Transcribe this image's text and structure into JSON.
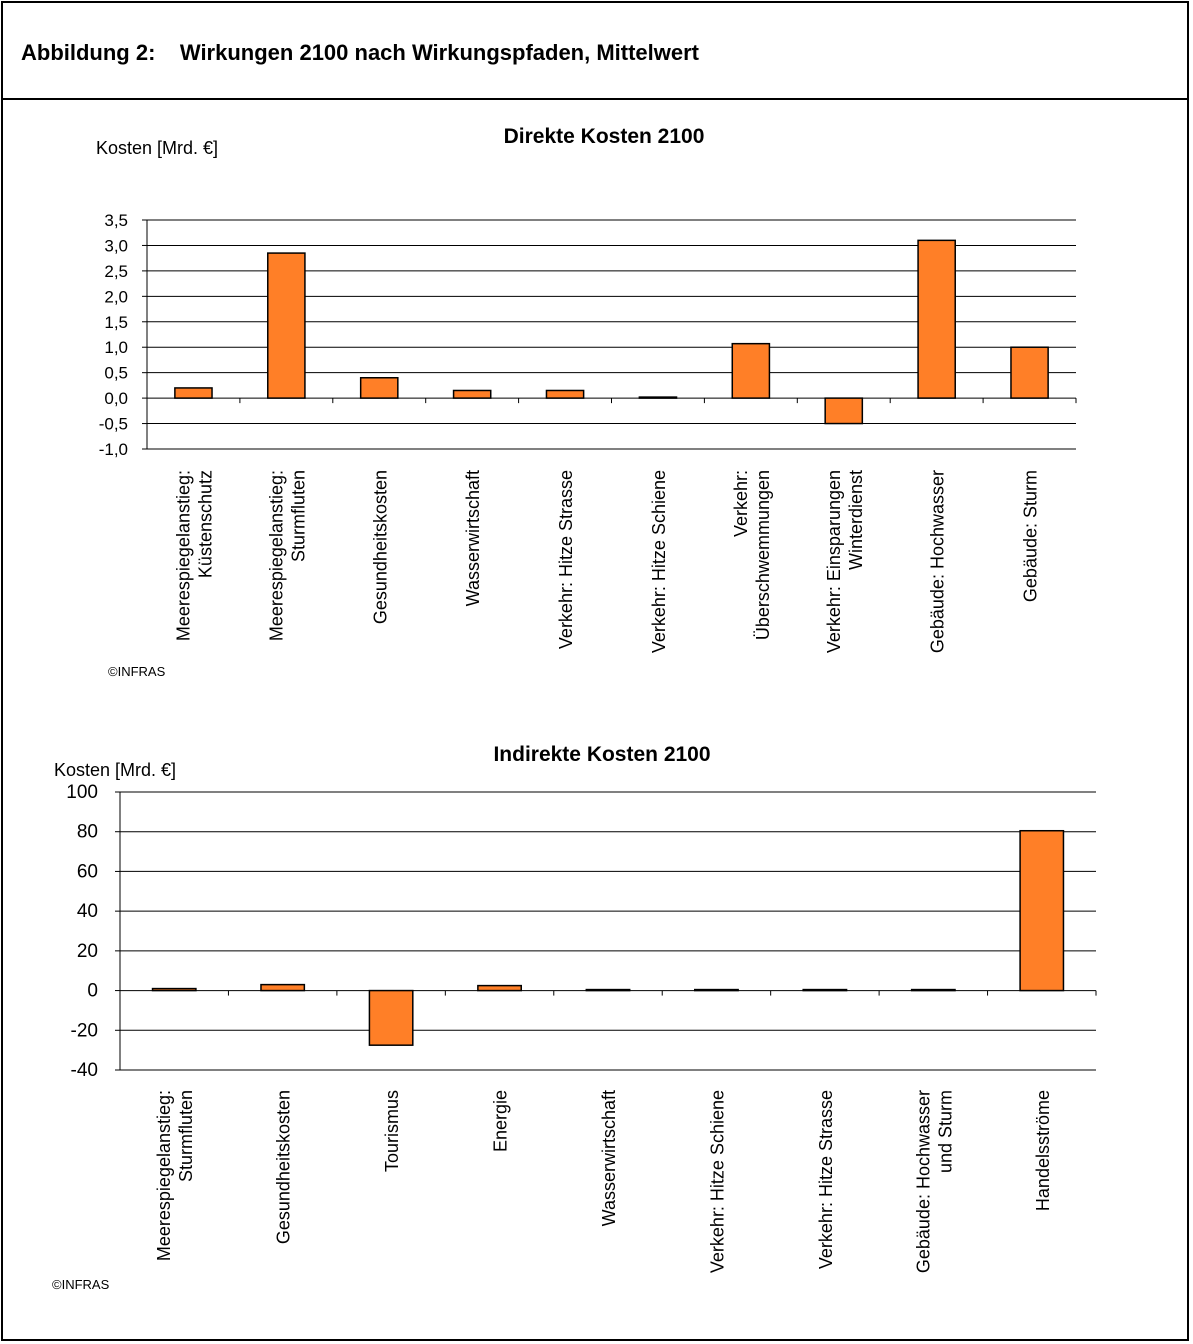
{
  "header": {
    "figure_label": "Abbildung 2:",
    "figure_title": "Wirkungen 2100 nach Wirkungspfaden, Mittelwert"
  },
  "colors": {
    "bar": "#FF7F27",
    "bar_stroke": "#000000",
    "grid": "#000000"
  },
  "chart_data": [
    {
      "type": "bar",
      "title": "Direkte Kosten 2100",
      "ylabel": "Kosten [Mrd. €]",
      "ylim": [
        -1.0,
        3.5
      ],
      "yticks": [
        "3,5",
        "3,0",
        "2,5",
        "2,0",
        "1,5",
        "1,0",
        "0,5",
        "0,0",
        "-0,5",
        "-1,0"
      ],
      "ytick_values": [
        3.5,
        3.0,
        2.5,
        2.0,
        1.5,
        1.0,
        0.5,
        0.0,
        -0.5,
        -1.0
      ],
      "grid": true,
      "categories": [
        [
          "Meerespiegelanstieg:",
          "Küstenschutz"
        ],
        [
          "Meerespiegelanstieg:",
          "Sturmfluten"
        ],
        [
          "Gesundheitskosten"
        ],
        [
          "Wasserwirtschaft"
        ],
        [
          "Verkehr: Hitze Strasse"
        ],
        [
          "Verkehr: Hitze Schiene"
        ],
        [
          "Verkehr:",
          "Überschwemmungen"
        ],
        [
          "Verkehr: Einsparungen",
          "Winterdienst"
        ],
        [
          "Gebäude: Hochwasser"
        ],
        [
          "Gebäude: Sturm"
        ]
      ],
      "values": [
        0.2,
        2.85,
        0.4,
        0.15,
        0.15,
        0.02,
        1.07,
        -0.5,
        3.1,
        1.0
      ],
      "copyright": "©INFRAS"
    },
    {
      "type": "bar",
      "title": "Indirekte Kosten 2100",
      "ylabel": "Kosten [Mrd. €]",
      "ylim": [
        -40,
        100
      ],
      "yticks": [
        "100",
        "80",
        "60",
        "40",
        "20",
        "0",
        "-20",
        "-40"
      ],
      "ytick_values": [
        100,
        80,
        60,
        40,
        20,
        0,
        -20,
        -40
      ],
      "grid": true,
      "categories": [
        [
          "Meerespiegelanstieg:",
          "Sturmfluten"
        ],
        [
          "Gesundheitskosten"
        ],
        [
          "Tourismus"
        ],
        [
          "Energie"
        ],
        [
          "Wasserwirtschaft"
        ],
        [
          "Verkehr: Hitze Schiene"
        ],
        [
          "Verkehr: Hitze Strasse"
        ],
        [
          "Gebäude: Hochwasser",
          "und Sturm"
        ],
        [
          "Handelsströme"
        ]
      ],
      "values": [
        1.0,
        3.0,
        -27.5,
        2.5,
        0.5,
        0.5,
        0.5,
        0.5,
        80.5
      ],
      "copyright": "©INFRAS"
    }
  ]
}
